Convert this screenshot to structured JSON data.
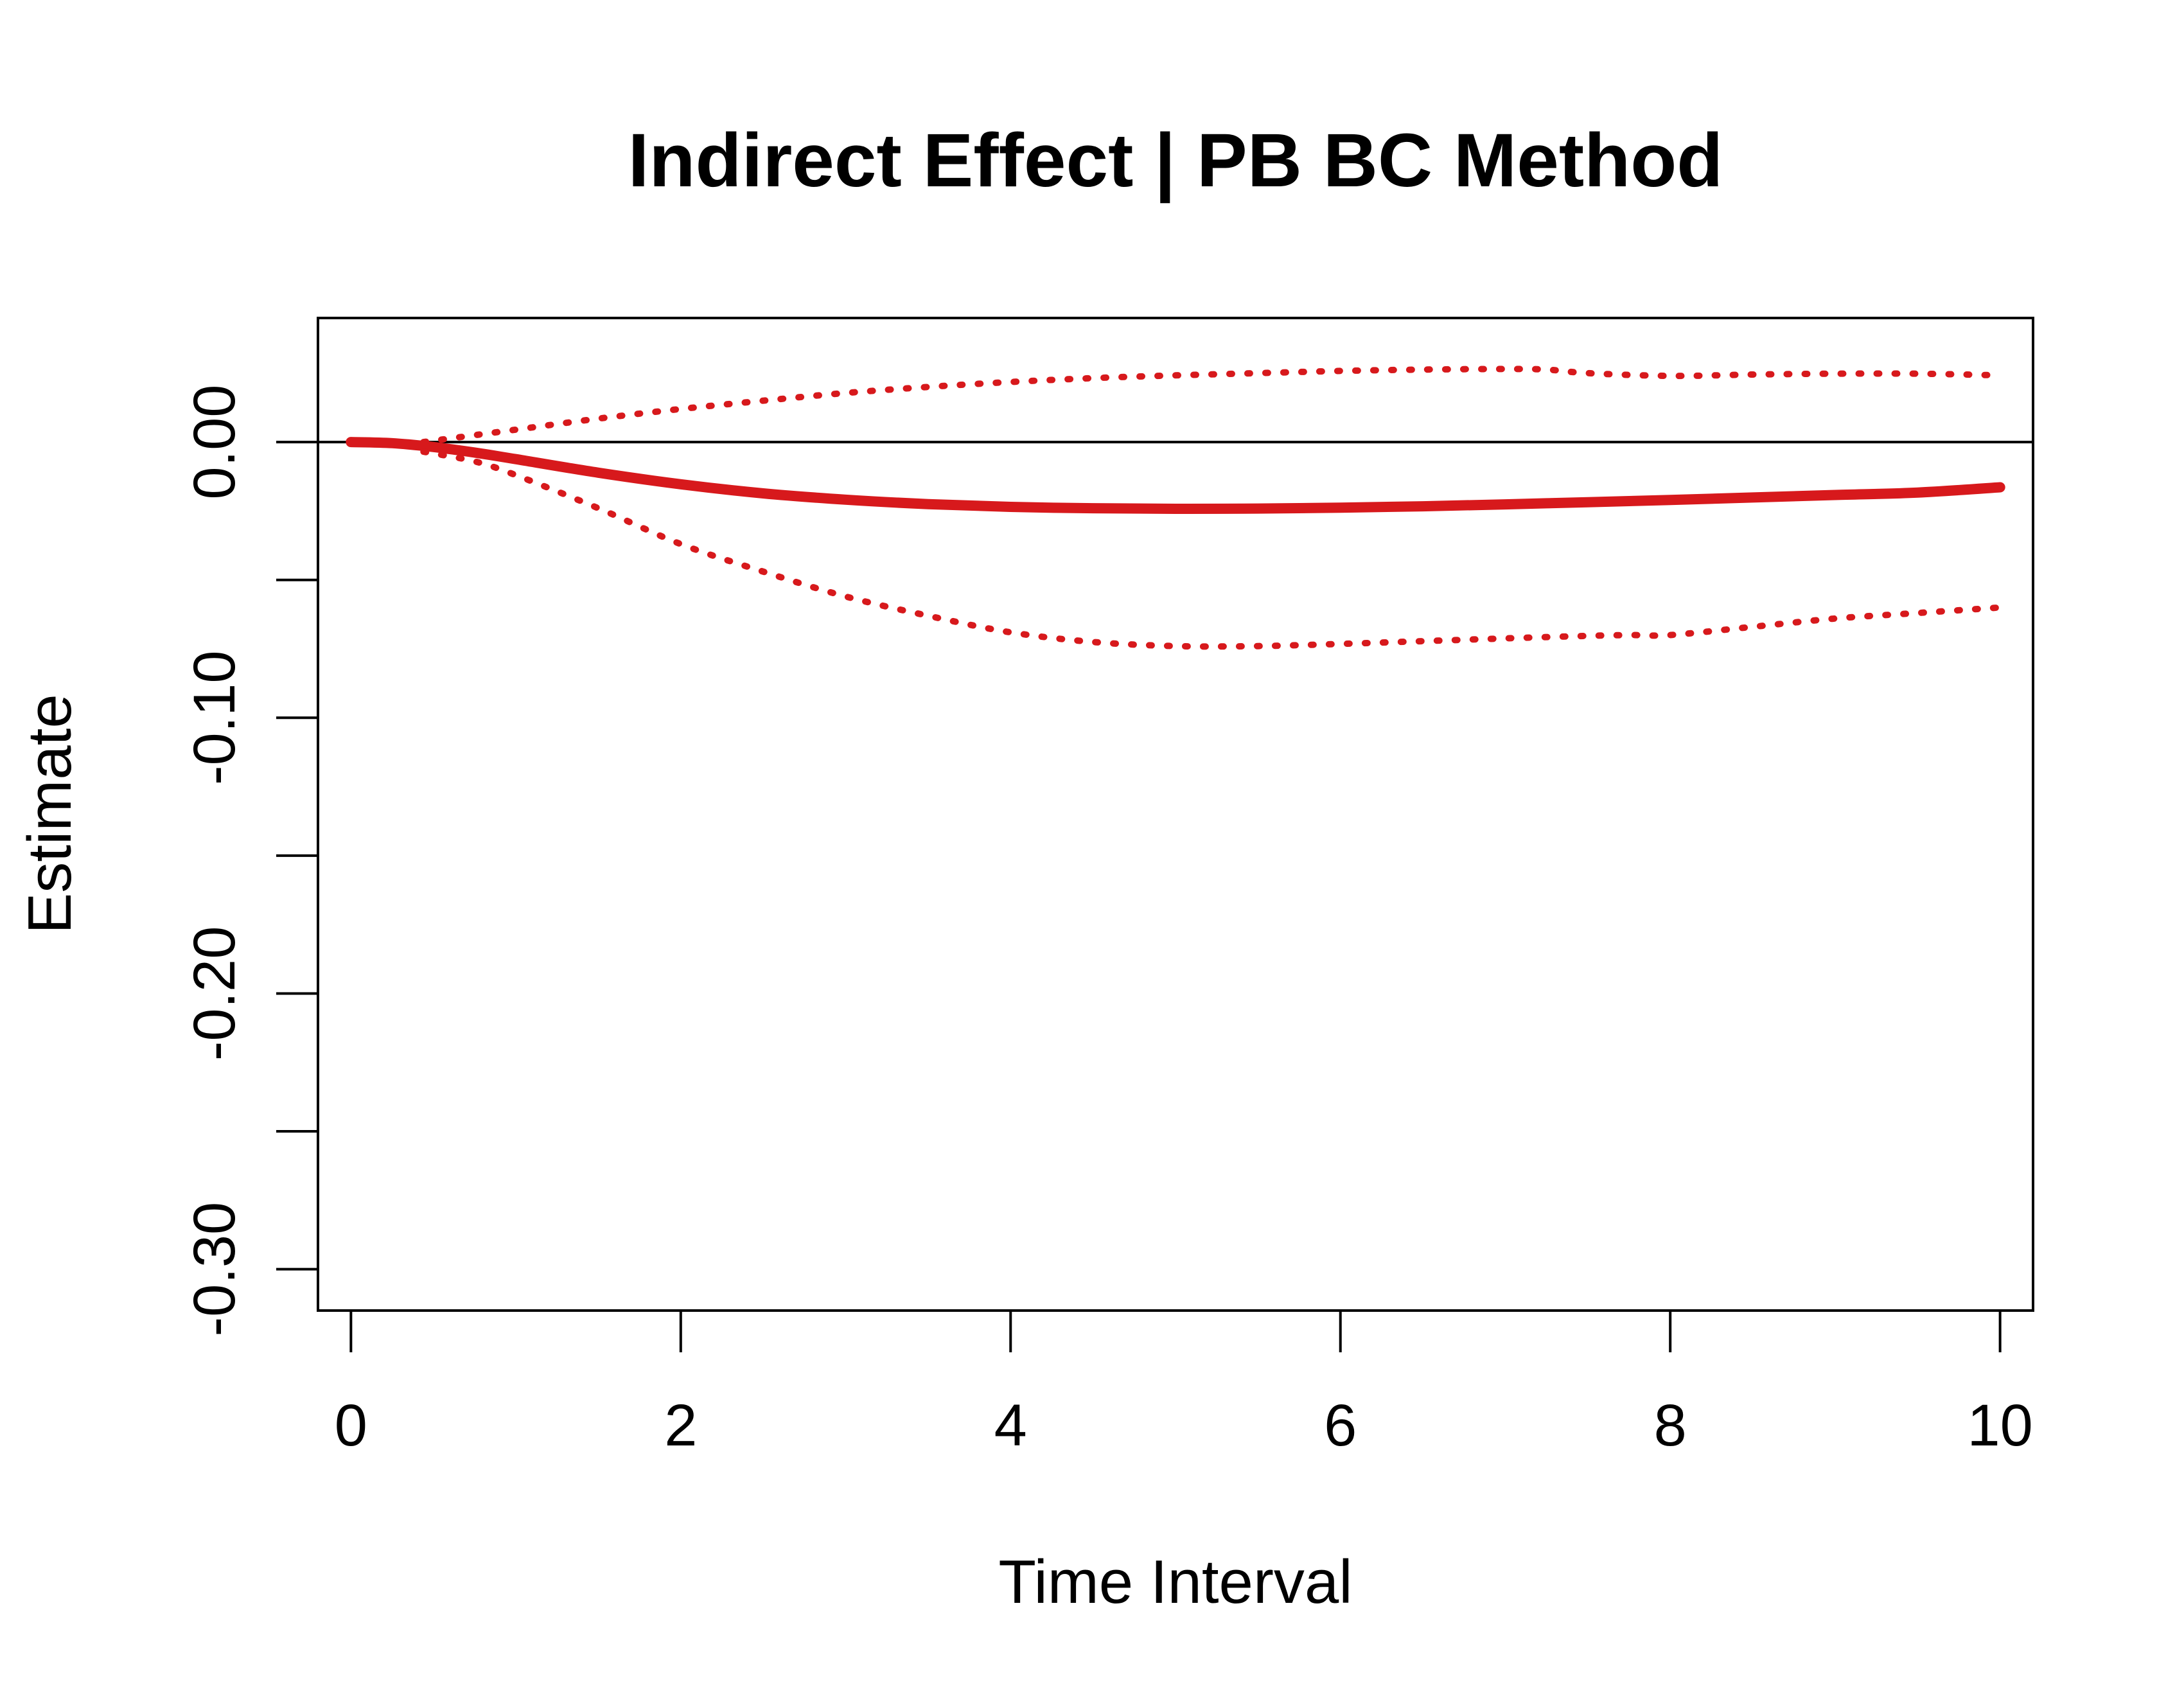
{
  "chart_data": {
    "type": "line",
    "title": "Indirect Effect | PB BC Method",
    "xlabel": "Time Interval",
    "ylabel": "Estimate",
    "xlim": [
      -0.2,
      10.2
    ],
    "ylim": [
      -0.315,
      0.045
    ],
    "x_ticks": [
      0,
      2,
      4,
      6,
      8,
      10
    ],
    "x_tick_labels": [
      "0",
      "2",
      "4",
      "6",
      "8",
      "10"
    ],
    "y_ticks": [
      0.0,
      -0.05,
      -0.1,
      -0.15,
      -0.2,
      -0.25,
      -0.3
    ],
    "y_tick_labels": [
      "0.00",
      "",
      "-0.10",
      "",
      "-0.20",
      "",
      "-0.30"
    ],
    "reference_line": 0,
    "grid": false,
    "legend": "none",
    "series": [
      {
        "style": "solid",
        "color": "#d7191c",
        "x": [
          0,
          0.25,
          0.5,
          0.75,
          1,
          1.5,
          2,
          2.5,
          3,
          3.5,
          4,
          4.5,
          5,
          5.5,
          6,
          6.5,
          7,
          7.5,
          8,
          8.5,
          9,
          9.5,
          10
        ],
        "y": [
          0,
          -0.0004,
          -0.0018,
          -0.0038,
          -0.0062,
          -0.0111,
          -0.0153,
          -0.0186,
          -0.0209,
          -0.0225,
          -0.0235,
          -0.024,
          -0.0242,
          -0.0241,
          -0.0238,
          -0.0233,
          -0.0226,
          -0.0218,
          -0.021,
          -0.0201,
          -0.0192,
          -0.0183,
          -0.0164
        ]
      },
      {
        "style": "dotted",
        "color": "#d7191c",
        "x": [
          0.44,
          0.75,
          1,
          1.5,
          2,
          2.5,
          3,
          3.5,
          4,
          4.5,
          5,
          5.5,
          6,
          6.5,
          7,
          7.25,
          7.5,
          8,
          8.5,
          9,
          9.5,
          10
        ],
        "y": [
          0.0,
          0.0025,
          0.0045,
          0.0085,
          0.012,
          0.015,
          0.0178,
          0.02,
          0.0218,
          0.0232,
          0.0242,
          0.025,
          0.0258,
          0.0263,
          0.0265,
          0.0263,
          0.025,
          0.024,
          0.0245,
          0.0248,
          0.0248,
          0.0242
        ]
      },
      {
        "style": "dotted",
        "color": "#d7191c",
        "x": [
          0.44,
          0.75,
          1,
          1.5,
          2,
          2.5,
          3,
          3.5,
          4,
          4.5,
          5,
          5.5,
          6,
          6.5,
          7,
          7.5,
          7.75,
          8,
          8.5,
          9,
          9.5,
          10
        ],
        "y": [
          -0.0035,
          -0.007,
          -0.012,
          -0.024,
          -0.037,
          -0.047,
          -0.056,
          -0.063,
          -0.069,
          -0.0725,
          -0.074,
          -0.074,
          -0.0732,
          -0.0722,
          -0.0712,
          -0.0703,
          -0.07,
          -0.07,
          -0.067,
          -0.064,
          -0.062,
          -0.06
        ]
      }
    ]
  }
}
